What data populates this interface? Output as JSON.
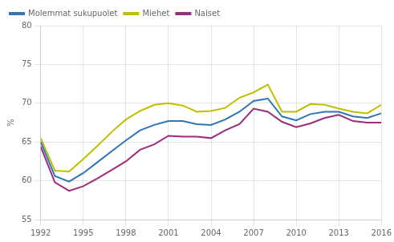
{
  "chart_data": {
    "type": "line",
    "ylabel": "%",
    "x": [
      1992,
      1993,
      1994,
      1995,
      1996,
      1997,
      1998,
      1999,
      2000,
      2001,
      2002,
      2003,
      2004,
      2005,
      2006,
      2007,
      2008,
      2009,
      2010,
      2011,
      2012,
      2013,
      2014,
      2015,
      2016
    ],
    "series": [
      {
        "name": "Molemmat sukupuolet",
        "color": "#2E75B6",
        "values": [
          65.0,
          60.6,
          59.9,
          61.0,
          62.4,
          63.8,
          65.2,
          66.5,
          67.2,
          67.7,
          67.7,
          67.3,
          67.2,
          67.9,
          68.9,
          70.3,
          70.6,
          68.3,
          67.8,
          68.6,
          68.9,
          68.9,
          68.3,
          68.1,
          68.7
        ]
      },
      {
        "name": "Miehet",
        "color": "#BFBF00",
        "values": [
          65.5,
          61.3,
          61.2,
          62.8,
          64.5,
          66.3,
          67.9,
          69.0,
          69.8,
          70.0,
          69.7,
          68.9,
          69.0,
          69.4,
          70.7,
          71.4,
          72.4,
          68.9,
          68.9,
          69.9,
          69.8,
          69.3,
          68.9,
          68.7,
          69.8
        ]
      },
      {
        "name": "Naiset",
        "color": "#9B2C7E",
        "values": [
          64.4,
          59.8,
          58.7,
          59.3,
          60.3,
          61.4,
          62.5,
          64.0,
          64.7,
          65.8,
          65.7,
          65.7,
          65.5,
          66.5,
          67.3,
          69.3,
          68.9,
          67.6,
          66.9,
          67.4,
          68.1,
          68.5,
          67.7,
          67.5,
          67.5
        ]
      }
    ],
    "xlim": [
      1992,
      2016
    ],
    "xticks": [
      1992,
      1995,
      1998,
      2001,
      2004,
      2007,
      2010,
      2013,
      2016
    ],
    "ylim": [
      55,
      80
    ],
    "yticks": [
      55,
      60,
      65,
      70,
      75,
      80
    ],
    "grid": true,
    "legend": "upper left"
  }
}
